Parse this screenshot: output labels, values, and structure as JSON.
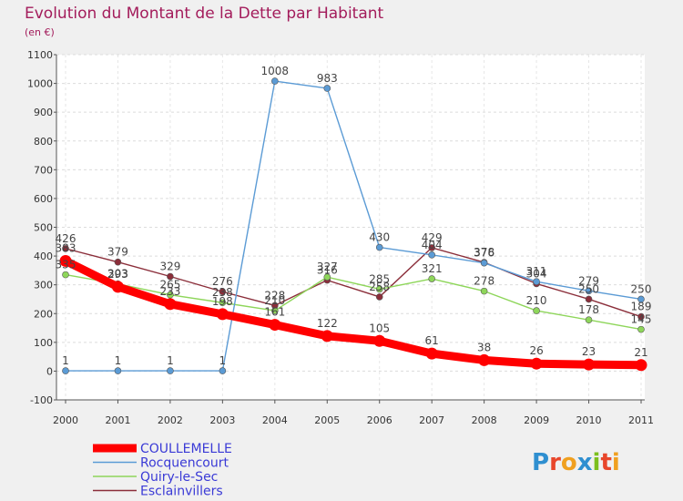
{
  "title": "Evolution du Montant de la Dette par Habitant",
  "subtitle": "(en €)",
  "brand": {
    "name": "Proxiti",
    "letters": [
      {
        "ch": "P",
        "color": "#2f8fd0"
      },
      {
        "ch": "r",
        "color": "#e8462b"
      },
      {
        "ch": "o",
        "color": "#f0a020"
      },
      {
        "ch": "x",
        "color": "#2f8fd0"
      },
      {
        "ch": "i",
        "color": "#7cbf1e"
      },
      {
        "ch": "t",
        "color": "#e8462b"
      },
      {
        "ch": "i",
        "color": "#f0a020"
      }
    ]
  },
  "chart_data": {
    "type": "line",
    "title": "Evolution du Montant de la Dette par Habitant",
    "subtitle": "(en €)",
    "xlabel": "",
    "ylabel": "",
    "categories": [
      "2000",
      "2001",
      "2002",
      "2003",
      "2004",
      "2005",
      "2006",
      "2007",
      "2008",
      "2009",
      "2010",
      "2011"
    ],
    "ylim": [
      -100,
      1100
    ],
    "yticks": [
      -100,
      0,
      100,
      200,
      300,
      400,
      500,
      600,
      700,
      800,
      900,
      1000,
      1100
    ],
    "grid": true,
    "legend_position": "bottom-left",
    "series": [
      {
        "name": "COULLEMELLE",
        "color": "#ff0000",
        "values": [
          383,
          293,
          233,
          198,
          161,
          122,
          105,
          61,
          38,
          26,
          23,
          21
        ]
      },
      {
        "name": "Rocquencourt",
        "color": "#5b9bd5",
        "values": [
          1,
          1,
          1,
          1,
          1008,
          983,
          430,
          404,
          376,
          311,
          279,
          250
        ]
      },
      {
        "name": "Quiry-le-Sec",
        "color": "#8ed65a",
        "values": [
          335,
          303,
          265,
          238,
          210,
          327,
          285,
          321,
          278,
          210,
          178,
          145
        ]
      },
      {
        "name": "Esclainvillers",
        "color": "#8b2e3a",
        "values": [
          426,
          379,
          329,
          276,
          228,
          316,
          258,
          429,
          378,
          304,
          250,
          189
        ]
      }
    ]
  }
}
